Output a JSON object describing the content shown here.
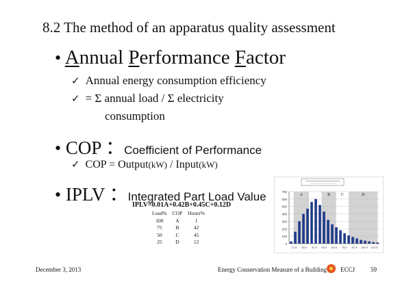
{
  "slide": {
    "section_title": "8.2   The method of an apparatus quality assessment",
    "bullet1": {
      "title_parts": [
        "A",
        "nnual ",
        "P",
        "erformance ",
        "F",
        "actor"
      ],
      "sub1": "Annual energy consumption efficiency",
      "sub2_line1": "= Σ annual load / Σ electricity",
      "sub2_line2": "consumption"
    },
    "bullet2": {
      "title": "COP",
      "colon": "：",
      "desc": "Coefficient of Performance",
      "sub1_prefix": "COP = Output",
      "sub1_unit1": "(kW)",
      "sub1_mid": " / Input",
      "sub1_unit2": "(kW)"
    },
    "bullet3": {
      "title": "IPLV",
      "colon": "：",
      "desc": "Integrated Part Load Value",
      "formula": "IPLV=0.01A+0.42B+0.45C+0.12D",
      "table": {
        "headers": [
          "Load%",
          "COP",
          "Hours%"
        ],
        "rows": [
          [
            "100",
            "A",
            "1"
          ],
          [
            "75",
            "B",
            "42"
          ],
          [
            "50",
            "C",
            "45"
          ],
          [
            "25",
            "D",
            "12"
          ]
        ]
      }
    },
    "check_icon": "✓",
    "bullet_icon": "•"
  },
  "chart_data": {
    "type": "bar",
    "title": "",
    "xlabel": "",
    "ylabel": "",
    "ylim": [
      0,
      700
    ],
    "y_ticks": [
      "0",
      "100",
      "200",
      "300",
      "400",
      "500",
      "600",
      "700"
    ],
    "x_ticks": [
      "12.5",
      "25.0",
      "37.5",
      "50.0",
      "62.5",
      "75.0",
      "87.5",
      "100.0",
      "112.5"
    ],
    "region_labels": [
      "A",
      "B",
      "C",
      "D"
    ],
    "values": [
      30,
      160,
      300,
      400,
      470,
      560,
      600,
      520,
      430,
      320,
      260,
      220,
      180,
      140,
      110,
      90,
      70,
      50,
      40,
      30,
      20,
      15
    ],
    "bar_color": "#1f3a8a",
    "band_color": "#c4c4c4"
  },
  "footer": {
    "date": "December 3, 2013",
    "title": "Energy Conservation Measure of a Building",
    "org": "ECCJ",
    "page": "59",
    "logo_icon": "eccj-logo-icon"
  }
}
